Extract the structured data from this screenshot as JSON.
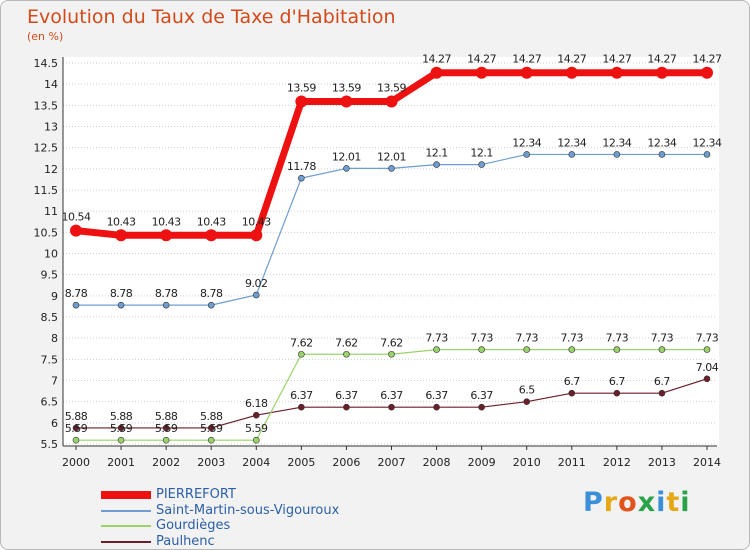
{
  "title": "Evolution du Taux de Taxe d'Habitation",
  "subtitle": "(en %)",
  "logo": "Proxiti",
  "colors": {
    "title": "#d24a1a",
    "legend_text": "#2b5fa6",
    "axis": "#333333",
    "grid": "#cfcfcf"
  },
  "chart_data": {
    "type": "line",
    "title": "Evolution du Taux de Taxe d'Habitation",
    "ylabel": "(en %)",
    "xlabel": "",
    "ylim": [
      5.5,
      14.5
    ],
    "yticks": [
      "5.5",
      "6",
      "6.5",
      "7",
      "7.5",
      "8",
      "8.5",
      "9",
      "9.5",
      "10",
      "10.5",
      "11",
      "11.5",
      "12",
      "12.5",
      "13",
      "13.5",
      "14",
      "14.5"
    ],
    "x": [
      "2000",
      "2001",
      "2002",
      "2003",
      "2004",
      "2005",
      "2006",
      "2007",
      "2008",
      "2009",
      "2010",
      "2011",
      "2012",
      "2013",
      "2014"
    ],
    "grid": "horizontal dotted",
    "legend_position": "bottom-left",
    "series": [
      {
        "name": "PIERREFORT",
        "color": "#ee1111",
        "values": [
          10.54,
          10.43,
          10.43,
          10.43,
          10.43,
          13.59,
          13.59,
          13.59,
          14.27,
          14.27,
          14.27,
          14.27,
          14.27,
          14.27,
          14.27
        ],
        "labels": [
          "10.54",
          "10.43",
          "10.43",
          "10.43",
          "10.43",
          "13.59",
          "13.59",
          "13.59",
          "14.27",
          "14.27",
          "14.27",
          "14.27",
          "14.27",
          "14.27",
          "14.27"
        ]
      },
      {
        "name": "Saint-Martin-sous-Vigouroux",
        "color": "#6e9dd1",
        "values": [
          8.78,
          8.78,
          8.78,
          8.78,
          9.02,
          11.78,
          12.01,
          12.01,
          12.1,
          12.1,
          12.34,
          12.34,
          12.34,
          12.34,
          12.34
        ],
        "labels": [
          "8.78",
          "8.78",
          "8.78",
          "8.78",
          "9.02",
          "11.78",
          "12.01",
          "12.01",
          "12.1",
          "12.1",
          "12.34",
          "12.34",
          "12.34",
          "12.34",
          "12.34"
        ]
      },
      {
        "name": "Gourdièges",
        "color": "#9ad36a",
        "values": [
          5.59,
          5.59,
          5.59,
          5.59,
          5.59,
          7.62,
          7.62,
          7.62,
          7.73,
          7.73,
          7.73,
          7.73,
          7.73,
          7.73,
          7.73
        ],
        "labels": [
          "5.59",
          "5.59",
          "5.59",
          "5.59",
          "5.59",
          "7.62",
          "7.62",
          "7.62",
          "7.73",
          "7.73",
          "7.73",
          "7.73",
          "7.73",
          "7.73",
          "7.73"
        ]
      },
      {
        "name": "Paulhenc",
        "color": "#6b1f2a",
        "values": [
          5.88,
          5.88,
          5.88,
          5.88,
          6.18,
          6.37,
          6.37,
          6.37,
          6.37,
          6.37,
          6.5,
          6.7,
          6.7,
          6.7,
          7.04
        ],
        "labels": [
          "5.88",
          "5.88",
          "5.88",
          "5.88",
          "6.18",
          "6.37",
          "6.37",
          "6.37",
          "6.37",
          "6.37",
          "6.5",
          "6.7",
          "6.7",
          "6.7",
          "7.04"
        ]
      }
    ]
  }
}
